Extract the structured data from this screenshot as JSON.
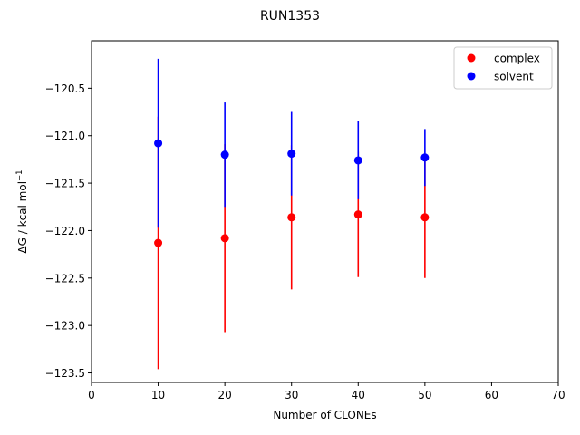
{
  "chart_data": {
    "type": "scatter",
    "title": "RUN1353",
    "xlabel": "Number of CLONEs",
    "ylabel": "ΔG / kcal mol",
    "ylabel_sup": "−1",
    "xlim": [
      0,
      70
    ],
    "ylim": [
      -123.6,
      -120.0
    ],
    "xticks": [
      0,
      10,
      20,
      30,
      40,
      50,
      60,
      70
    ],
    "yticks": [
      -123.5,
      -123.0,
      -122.5,
      -122.0,
      -121.5,
      -121.0,
      -120.5
    ],
    "xtick_labels": [
      "0",
      "10",
      "20",
      "30",
      "40",
      "50",
      "60",
      "70"
    ],
    "ytick_labels": [
      "−123.5",
      "−123.0",
      "−122.5",
      "−122.0",
      "−121.5",
      "−121.0",
      "−120.5"
    ],
    "grid": false,
    "legend_position": "top-right",
    "series": [
      {
        "name": "complex",
        "color": "#ff0000",
        "x": [
          10,
          20,
          30,
          40,
          50
        ],
        "y": [
          -122.13,
          -122.08,
          -121.86,
          -121.83,
          -121.86
        ],
        "err": [
          1.33,
          0.99,
          0.76,
          0.66,
          0.64
        ]
      },
      {
        "name": "solvent",
        "color": "#0000ff",
        "x": [
          10,
          20,
          30,
          40,
          50
        ],
        "y": [
          -121.08,
          -121.2,
          -121.19,
          -121.26,
          -121.23
        ],
        "err": [
          0.89,
          0.55,
          0.44,
          0.41,
          0.3
        ]
      }
    ]
  }
}
